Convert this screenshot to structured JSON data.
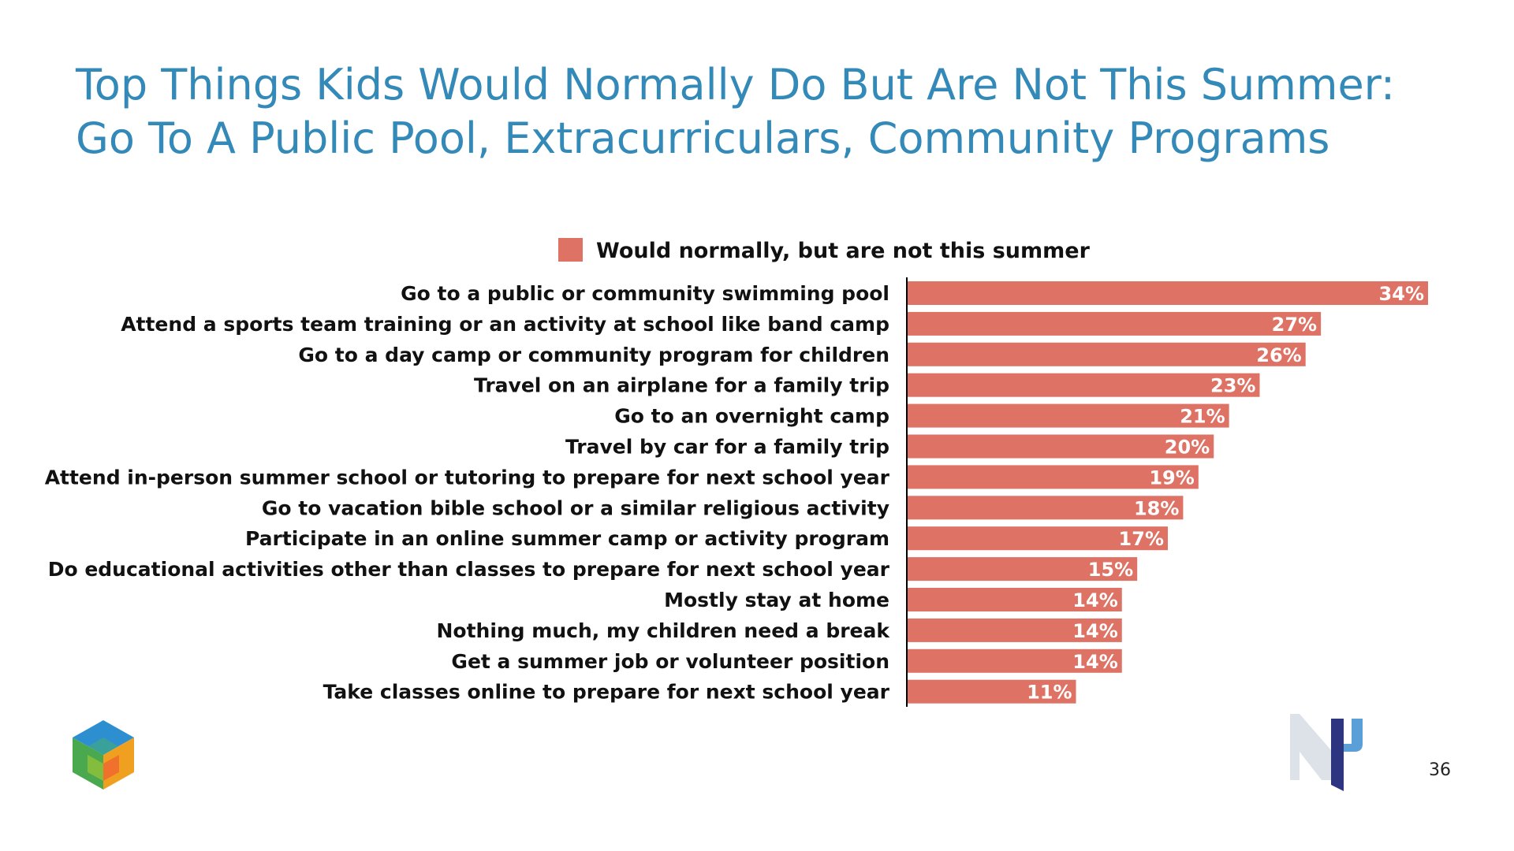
{
  "slide": {
    "title": "Top Things Kids Would Normally Do But Are Not This Summer: Go To A Public Pool, Extracurriculars, Community Programs",
    "page_number": "36"
  },
  "colors": {
    "title": "#3389b7",
    "bar": "#de7265",
    "axis": "#000000"
  },
  "chart_data": {
    "type": "bar",
    "orientation": "horizontal",
    "legend": [
      "Would normally, but are not this summer"
    ],
    "legend_position": "top",
    "grid": false,
    "xlim": [
      0,
      34
    ],
    "categories": [
      "Go to a public or community swimming pool",
      "Attend a sports team training or an activity at school like band camp",
      "Go to a day camp or community program for children",
      "Travel on an airplane for a family trip",
      "Go to an overnight camp",
      "Travel by car for a family trip",
      "Attend in-person summer school or tutoring to prepare for next school year",
      "Go to vacation bible school or a similar religious activity",
      "Participate in an online summer camp or activity program",
      "Do educational activities other than classes to prepare for next school year",
      "Mostly stay at home",
      "Nothing much, my children need a break",
      "Get a summer job or volunteer position",
      "Take classes online to prepare for next school year"
    ],
    "series": [
      {
        "name": "Would normally, but are not this summer",
        "values": [
          34,
          27,
          26,
          23,
          21,
          20,
          19,
          18,
          17,
          15,
          14,
          14,
          14,
          11
        ]
      }
    ],
    "value_labels": [
      "34%",
      "27%",
      "26%",
      "23%",
      "21%",
      "20%",
      "19%",
      "18%",
      "17%",
      "15%",
      "14%",
      "14%",
      "14%",
      "11%"
    ]
  },
  "logos": {
    "left": "cube-logo",
    "right": "np-logo"
  }
}
